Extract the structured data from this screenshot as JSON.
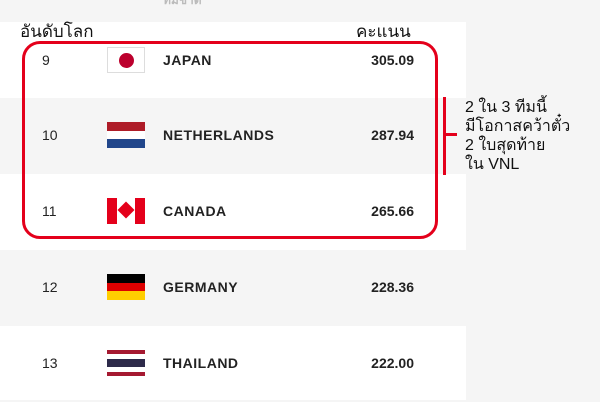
{
  "top_cut_text": "ทีมชาติ",
  "header": {
    "rank": "อันดับโลก",
    "score": "คะแนน"
  },
  "rows": [
    {
      "rank": "9",
      "country": "JAPAN",
      "score": "305.09",
      "flag": "japan"
    },
    {
      "rank": "10",
      "country": "NETHERLANDS",
      "score": "287.94",
      "flag": "netherlands"
    },
    {
      "rank": "11",
      "country": "CANADA",
      "score": "265.66",
      "flag": "canada"
    },
    {
      "rank": "12",
      "country": "GERMANY",
      "score": "228.36",
      "flag": "germany"
    },
    {
      "rank": "13",
      "country": "THAILAND",
      "score": "222.00",
      "flag": "thailand"
    }
  ],
  "annotation": {
    "lines": [
      "2 ใน 3 ทีมนี้",
      "มีโอกาสคว้าตั๋ว",
      "2 ใบสุดท้าย",
      "ใน VNL"
    ],
    "color": "#e4001b"
  }
}
